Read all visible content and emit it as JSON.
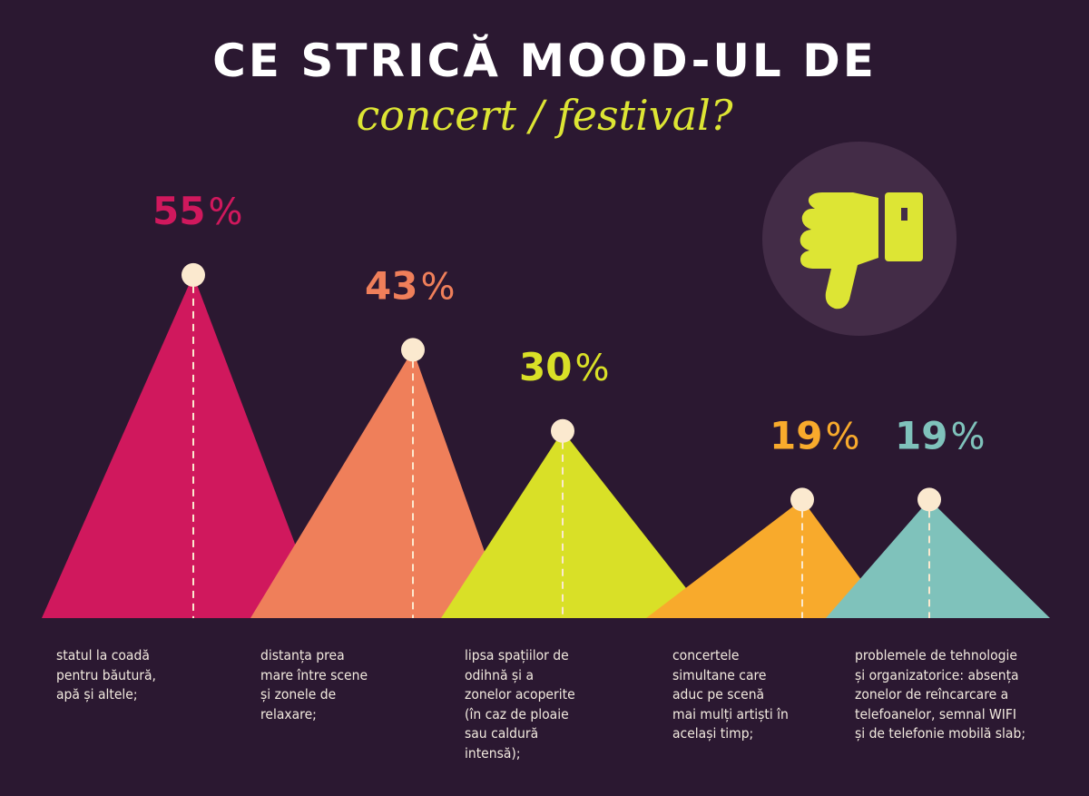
{
  "title": {
    "line1": "CE STRICĂ MOOD-UL DE",
    "line2": "concert / festival?"
  },
  "icon": "thumbs-down-icon",
  "colors": {
    "background": "#2b1831",
    "icon_circle": "#432c47",
    "icon": "#dde534",
    "peak_dot": "#fbe9cf"
  },
  "chart_data": {
    "type": "area",
    "unit": "%",
    "ylim": [
      0,
      55
    ],
    "grid": false,
    "categories": [
      "statul la coadă\npentru băutură,\napă și altele;",
      "distanța prea\nmare între scene\nși zonele de\nrelaxare;",
      "lipsa spațiilor de\nodihnă și a\nzonelor acoperite\n(în caz de ploaie\nsau caldură\nintensă);",
      "concertele\nsimultane care\naduc  pe scenă\nmai mulți artiști în\nacelași timp;",
      "problemele de tehnologie\nși organizatorice: absența\nzonelor de reîncarcare a\ntelefoanelor, semnal WIFI\nși de telefonie mobilă slab;"
    ],
    "values": [
      55,
      43,
      30,
      19,
      19
    ],
    "labels": [
      "55",
      "43",
      "30",
      "19",
      "19"
    ],
    "series_colors": [
      "#d0185d",
      "#ef7f5a",
      "#d9e027",
      "#f8aa2c",
      "#7fc2bb"
    ]
  }
}
